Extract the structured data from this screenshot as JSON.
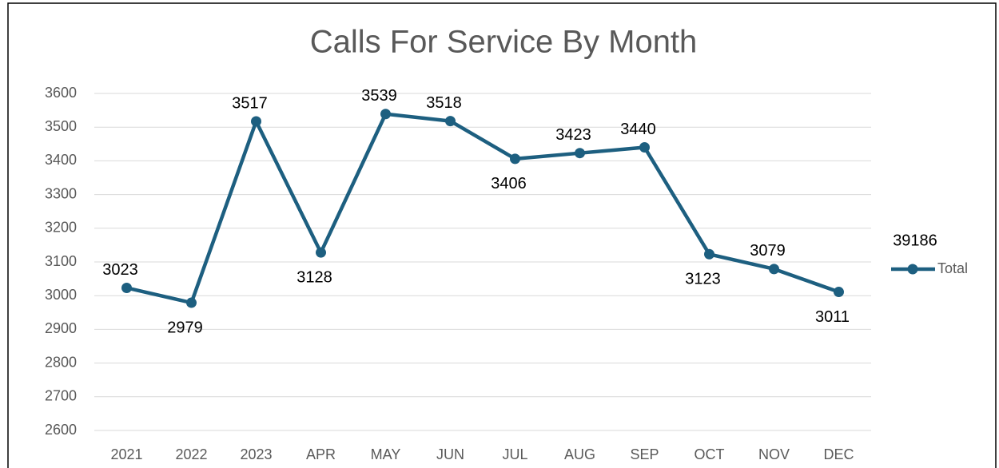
{
  "chart_data": {
    "type": "line",
    "title": "Calls For Service By Month",
    "categories": [
      "2021",
      "2022",
      "2023",
      "APR",
      "MAY",
      "JUN",
      "JUL",
      "AUG",
      "SEP",
      "OCT",
      "NOV",
      "DEC"
    ],
    "series": [
      {
        "name": "Total",
        "color": "#1d5f80",
        "values": [
          3023,
          2979,
          3517,
          3128,
          3539,
          3518,
          3406,
          3423,
          3440,
          3123,
          3079,
          3011
        ]
      }
    ],
    "annotation": "39186",
    "ylim": [
      2600,
      3600
    ],
    "yticks": [
      2600,
      2700,
      2800,
      2900,
      3000,
      3100,
      3200,
      3300,
      3400,
      3500,
      3600
    ],
    "grid": true,
    "legend": "right"
  }
}
